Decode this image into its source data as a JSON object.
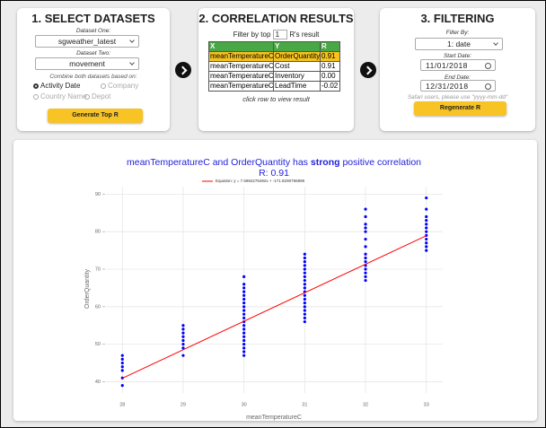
{
  "select": {
    "title": "1. SELECT DATASETS",
    "dataset_one_label": "Dataset One:",
    "dataset_one": "sgweather_latest",
    "dataset_two_label": "Dataset Two:",
    "dataset_two": "movement",
    "combine_label": "Combine both datasets based on:",
    "options": [
      "Activity Date",
      "Company",
      "Country Name",
      "Depot"
    ],
    "button": "Generate Top R"
  },
  "results": {
    "title": "2. CORRELATION RESULTS",
    "filter_prefix": "Filter by top",
    "top": "1",
    "filter_suffix": "R's result",
    "columns": [
      "X",
      "Y",
      "R"
    ],
    "rows": [
      [
        "meanTemperatureC",
        "OrderQuantity",
        "0.91"
      ],
      [
        "meanTemperatureC",
        "Cost",
        "0.91"
      ],
      [
        "meanTemperatureC",
        "Inventory",
        "0.00"
      ],
      [
        "meanTemperatureC",
        "LeadTime",
        "-0.02"
      ]
    ],
    "note": "click row to view result"
  },
  "filtering": {
    "title": "3. FILTERING",
    "filter_by_label": "Filter By:",
    "filter_by": "1: date",
    "start_label": "Start Date:",
    "start_date": "11/01/2018",
    "end_label": "End Date:",
    "end_date": "12/31/2018",
    "note": "Safari users, please use \"yyyy-mm-dd\"",
    "button": "Regenerate R"
  },
  "chart_data": {
    "type": "scatter",
    "title_prefix": "meanTemperatureC and OrderQuantity has",
    "title_emphasis": "strong",
    "title_suffix": "positive correlation",
    "subtitle": "R: 0.91",
    "x_label": "meanTemperatureC",
    "y_label": "OrderQuantity",
    "xlim": [
      27.73,
      33.27
    ],
    "ylim": [
      37,
      92
    ],
    "xticks": [
      28,
      29,
      30,
      31,
      32,
      33
    ],
    "yticks": [
      40,
      50,
      60,
      70,
      80,
      90
    ],
    "grid": true,
    "series": [
      {
        "color": "#0000ff",
        "x": [
          28,
          28,
          28,
          28,
          28,
          28,
          28,
          29,
          29,
          29,
          29,
          29,
          29,
          29,
          29,
          30,
          30,
          30,
          30,
          30,
          30,
          30,
          30,
          30,
          30,
          30,
          30,
          30,
          30,
          30,
          30,
          30,
          30,
          30,
          30,
          30,
          31,
          31,
          31,
          31,
          31,
          31,
          31,
          31,
          31,
          31,
          31,
          31,
          31,
          31,
          31,
          31,
          31,
          31,
          31,
          32,
          32,
          32,
          32,
          32,
          32,
          32,
          32,
          32,
          32,
          32,
          32,
          32,
          32,
          32,
          33,
          33,
          33,
          33,
          33,
          33,
          33,
          33,
          33,
          33,
          33,
          33
        ],
        "values": [
          39,
          41,
          43,
          44,
          45,
          46,
          47,
          47,
          49,
          50,
          51,
          52,
          53,
          54,
          55,
          47,
          48,
          49,
          50,
          51,
          52,
          53,
          54,
          55,
          56,
          57,
          58,
          59,
          60,
          61,
          62,
          63,
          64,
          65,
          66,
          68,
          56,
          57,
          58,
          59,
          60,
          61,
          62,
          63,
          64,
          65,
          66,
          67,
          68,
          69,
          70,
          71,
          72,
          73,
          74,
          67,
          68,
          69,
          70,
          71,
          72,
          73,
          74,
          76,
          78,
          80,
          81,
          82,
          84,
          86,
          75,
          76,
          77,
          78,
          79,
          80,
          81,
          82,
          83,
          84,
          86,
          89
        ]
      },
      {
        "name": "Equation: y = 7.5984275492x + -171.8290756896",
        "color": "#ff0000",
        "x": [
          28,
          33
        ],
        "values": [
          40.93,
          78.92
        ]
      }
    ]
  }
}
